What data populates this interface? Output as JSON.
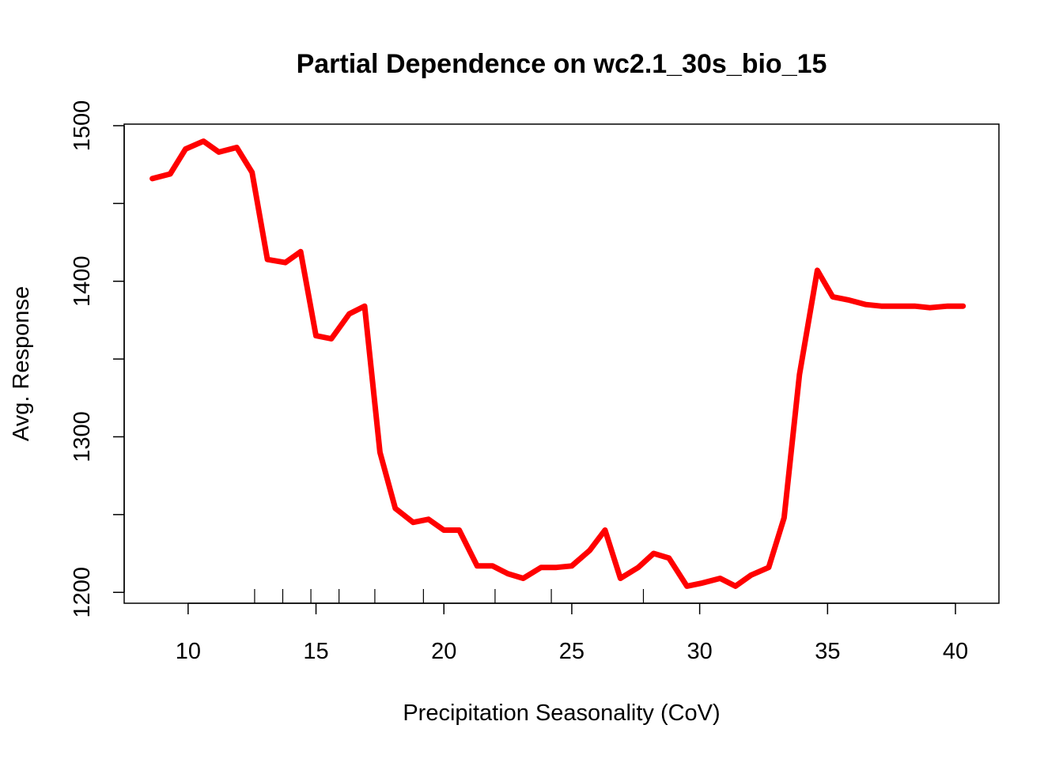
{
  "chart_data": {
    "type": "line",
    "title": "Partial Dependence on wc2.1_30s_bio_15",
    "xlabel": "Precipitation Seasonality (CoV)",
    "ylabel": "Avg. Response",
    "xlim": [
      7.5,
      41.7
    ],
    "ylim": [
      1193,
      1501
    ],
    "x_ticks": [
      10,
      15,
      20,
      25,
      30,
      35,
      40
    ],
    "y_ticks": [
      1200,
      1300,
      1400,
      1500
    ],
    "rug": [
      12.6,
      13.7,
      14.8,
      15.9,
      17.3,
      19.2,
      22.0,
      24.2,
      27.8
    ],
    "line_color": "#ff0000",
    "series": [
      {
        "x": [
          8.6,
          9.3,
          9.9,
          10.6,
          11.2,
          11.9,
          12.5,
          13.1,
          13.8,
          14.4,
          15.0,
          15.6,
          16.3,
          16.9,
          17.5,
          18.1,
          18.8,
          19.4,
          20.0,
          20.6,
          21.3,
          21.9,
          22.5,
          23.1,
          23.8,
          24.4,
          25.0,
          25.7,
          26.3,
          26.9,
          27.6,
          28.2,
          28.8,
          29.5,
          30.1,
          30.8,
          31.4,
          32.0,
          32.7,
          33.3,
          33.9,
          34.6,
          35.2,
          35.8,
          36.5,
          37.1,
          37.8,
          38.4,
          39.0,
          39.7,
          40.3
        ],
        "y": [
          1466,
          1469,
          1485,
          1490,
          1483,
          1486,
          1470,
          1414,
          1412,
          1419,
          1365,
          1363,
          1379,
          1384,
          1290,
          1254,
          1245,
          1247,
          1240,
          1240,
          1217,
          1217,
          1212,
          1209,
          1216,
          1216,
          1217,
          1227,
          1240,
          1209,
          1216,
          1225,
          1222,
          1204,
          1206,
          1209,
          1204,
          1211,
          1216,
          1248,
          1340,
          1407,
          1390,
          1388,
          1385,
          1384,
          1384,
          1384,
          1383,
          1384,
          1384
        ]
      }
    ]
  }
}
